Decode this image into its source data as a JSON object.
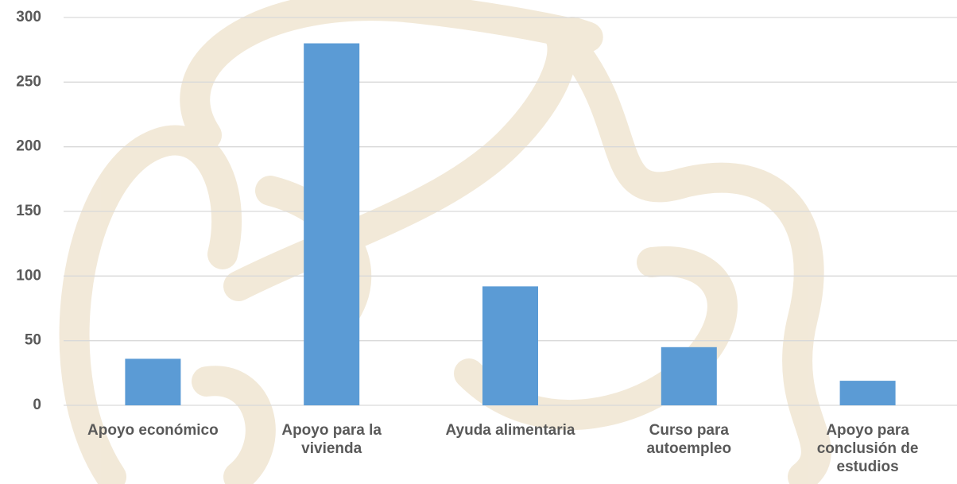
{
  "chart_data": {
    "type": "bar",
    "categories": [
      "Apoyo económico",
      "Apoyo para la vivienda",
      "Ayuda alimentaria",
      "Curso para autoempleo",
      "Apoyo para conclusión de estudios"
    ],
    "values": [
      36,
      280,
      92,
      45,
      19
    ],
    "color": "#5b9bd5",
    "ylim": [
      0,
      300
    ],
    "yticks": [
      0,
      50,
      100,
      150,
      200,
      250,
      300
    ],
    "grid": true
  }
}
